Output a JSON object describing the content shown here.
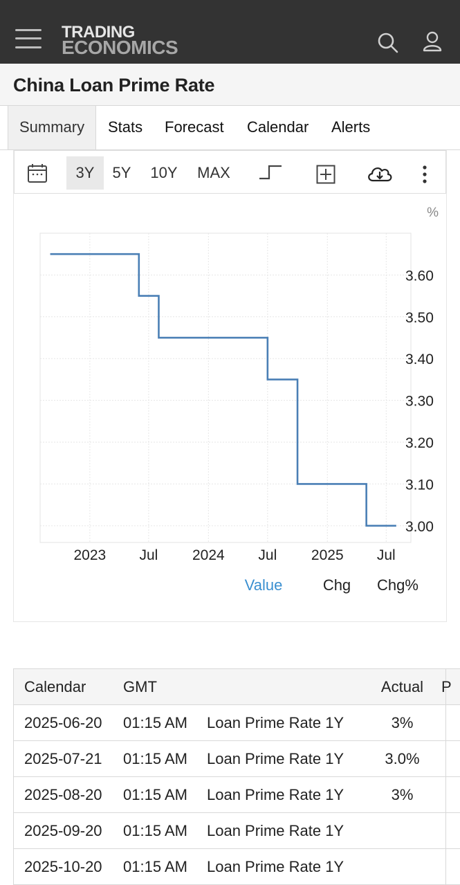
{
  "header": {
    "logo_line1": "TRADING",
    "logo_line2": "ECONOMICS",
    "icons": [
      "menu-icon",
      "search-icon",
      "user-icon"
    ]
  },
  "page": {
    "title": "China Loan Prime Rate"
  },
  "tabs": [
    {
      "label": "Summary",
      "active": true
    },
    {
      "label": "Stats"
    },
    {
      "label": "Forecast"
    },
    {
      "label": "Calendar"
    },
    {
      "label": "Alerts"
    }
  ],
  "toolbar": {
    "ranges": [
      "3Y",
      "5Y",
      "10Y",
      "MAX"
    ],
    "active_range": "3Y",
    "icons": [
      "calendar-icon",
      "step-line-icon",
      "add-compare-icon",
      "download-icon",
      "more-options-icon"
    ]
  },
  "chart_data": {
    "type": "line",
    "line_style": "step",
    "unit": "%",
    "x_ticks": [
      "2023",
      "Jul",
      "2024",
      "Jul",
      "2025",
      "Jul"
    ],
    "y_ticks": [
      "3.60",
      "3.50",
      "3.40",
      "3.30",
      "3.20",
      "3.10",
      "3.00"
    ],
    "ylim": [
      2.96,
      3.7
    ],
    "points": [
      {
        "date": "2022-09",
        "value": 3.65
      },
      {
        "date": "2023-06",
        "value": 3.55
      },
      {
        "date": "2023-08",
        "value": 3.45
      },
      {
        "date": "2024-07",
        "value": 3.35
      },
      {
        "date": "2024-10",
        "value": 3.1
      },
      {
        "date": "2025-05",
        "value": 3.0
      },
      {
        "date": "2025-08",
        "value": 3.0
      }
    ],
    "series_color": "#4a7fb5",
    "grid": true,
    "legend": [
      {
        "label": "Value",
        "active": true,
        "color": "#3a8fd0"
      },
      {
        "label": "Chg",
        "active": false
      },
      {
        "label": "Chg%",
        "active": false
      }
    ]
  },
  "calendar_table": {
    "columns": [
      "Calendar",
      "GMT",
      "",
      "Actual",
      "P"
    ],
    "rows": [
      {
        "date": "2025-06-20",
        "time": "01:15 AM",
        "event": "Loan Prime Rate 1Y",
        "actual": "3%"
      },
      {
        "date": "2025-07-21",
        "time": "01:15 AM",
        "event": "Loan Prime Rate 1Y",
        "actual": "3.0%"
      },
      {
        "date": "2025-08-20",
        "time": "01:15 AM",
        "event": "Loan Prime Rate 1Y",
        "actual": "3%"
      },
      {
        "date": "2025-09-20",
        "time": "01:15 AM",
        "event": "Loan Prime Rate 1Y",
        "actual": ""
      },
      {
        "date": "2025-10-20",
        "time": "01:15 AM",
        "event": "Loan Prime Rate 1Y",
        "actual": ""
      }
    ]
  }
}
